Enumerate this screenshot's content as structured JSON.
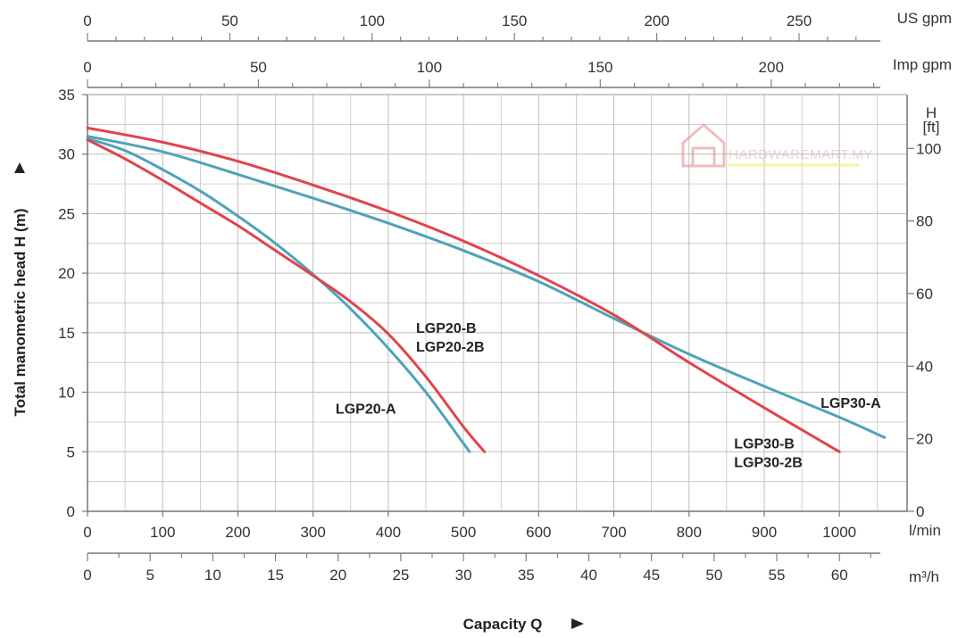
{
  "chart_data": {
    "type": "line",
    "xlabel": "Capacity Q",
    "ylabel": "Total manometric head H (m)",
    "x_unit": "l/min",
    "y_unit": "m",
    "xlim": [
      0,
      1090
    ],
    "ylim": [
      0,
      35
    ],
    "x_ticks": [
      0,
      100,
      200,
      300,
      400,
      500,
      600,
      700,
      800,
      900,
      1000
    ],
    "y_ticks": [
      0,
      5,
      10,
      15,
      20,
      25,
      30,
      35
    ],
    "grid": true,
    "right_axis": {
      "unit_line1": "H",
      "unit_line2": "[ft]",
      "ticks": [
        0,
        20,
        40,
        60,
        80,
        100
      ]
    },
    "top_axis_us": {
      "unit": "US gpm",
      "ticks": [
        0,
        50,
        100,
        150,
        200,
        250
      ]
    },
    "top_axis_imp": {
      "unit": "Imp gpm",
      "ticks": [
        0,
        50,
        100,
        150,
        200
      ]
    },
    "bottom_axis_m3h": {
      "unit": "m³/h",
      "ticks": [
        0,
        5,
        10,
        15,
        20,
        25,
        30,
        35,
        40,
        45,
        50,
        55,
        60
      ]
    },
    "series": [
      {
        "name": "LGP20-A",
        "color": "#4fa3b8",
        "x": [
          0,
          50,
          100,
          150,
          200,
          250,
          300,
          350,
          400,
          450,
          500,
          508
        ],
        "y": [
          31.3,
          30.3,
          28.7,
          26.9,
          24.8,
          22.5,
          19.9,
          17.0,
          13.7,
          10.0,
          5.7,
          5.0
        ]
      },
      {
        "name": "LGP20-B LGP20-2B",
        "color": "#e0444c",
        "x": [
          0,
          50,
          100,
          150,
          200,
          250,
          300,
          350,
          400,
          450,
          500,
          528
        ],
        "y": [
          31.2,
          29.6,
          27.8,
          25.9,
          24.0,
          21.9,
          19.8,
          17.6,
          14.9,
          11.3,
          7.1,
          5.0
        ]
      },
      {
        "name": "LGP30-A",
        "color": "#4fa3b8",
        "x": [
          0,
          100,
          200,
          300,
          400,
          500,
          600,
          700,
          800,
          900,
          1000,
          1060
        ],
        "y": [
          31.5,
          30.2,
          28.3,
          26.3,
          24.2,
          21.9,
          19.3,
          16.2,
          13.2,
          10.5,
          7.9,
          6.2
        ]
      },
      {
        "name": "LGP30-B LGP30-2B",
        "color": "#e0444c",
        "x": [
          0,
          100,
          200,
          300,
          400,
          500,
          600,
          700,
          800,
          900,
          1000
        ],
        "y": [
          32.2,
          31.0,
          29.4,
          27.4,
          25.2,
          22.7,
          19.8,
          16.5,
          12.5,
          8.7,
          5.0
        ]
      }
    ],
    "annotations": [
      {
        "text": "LGP20-A",
        "x": 330,
        "y": 8.2
      },
      {
        "text": "LGP20-B",
        "x": 437,
        "y": 15.0
      },
      {
        "text": "LGP20-2B",
        "x": 437,
        "y": 13.4
      },
      {
        "text": "LGP30-A",
        "x": 975,
        "y": 8.7
      },
      {
        "text": "LGP30-B",
        "x": 860,
        "y": 5.3
      },
      {
        "text": "LGP30-2B",
        "x": 860,
        "y": 3.7
      }
    ]
  },
  "watermark": {
    "text": "HARDWAREMART.MY"
  }
}
